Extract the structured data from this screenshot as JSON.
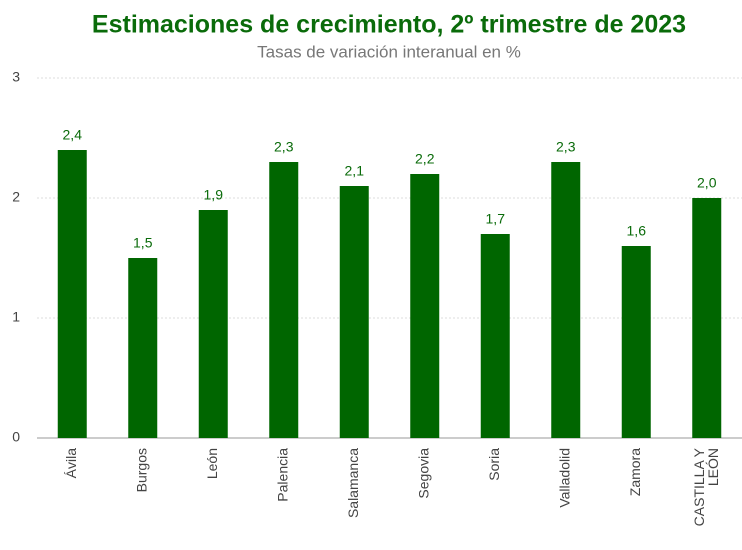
{
  "chart_data": {
    "type": "bar",
    "title": "Estimaciones de crecimiento, 2º trimestre de 2023",
    "subtitle": "Tasas de variación interanual en %",
    "categories": [
      "Ávila",
      "Burgos",
      "León",
      "Palencia",
      "Salamanca",
      "Segovia",
      "Soria",
      "Valladolid",
      "Zamora",
      "CASTILLA Y LEÓN"
    ],
    "values": [
      2.4,
      1.5,
      1.9,
      2.3,
      2.1,
      2.2,
      1.7,
      2.3,
      1.6,
      2.0
    ],
    "value_labels": [
      "2,4",
      "1,5",
      "1,9",
      "2,3",
      "2,1",
      "2,2",
      "1,7",
      "2,3",
      "1,6",
      "2,0"
    ],
    "color": "#006600",
    "ylim": [
      0,
      3
    ],
    "yticks": [
      0,
      1,
      2,
      3
    ],
    "grid": true
  }
}
